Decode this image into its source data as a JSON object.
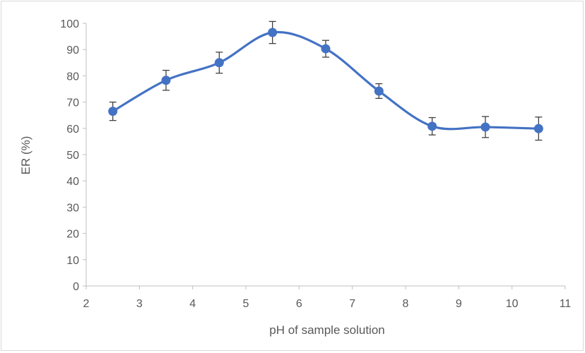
{
  "chart_data": {
    "type": "line",
    "title": "",
    "xlabel": "pH of sample solution",
    "ylabel": "ER (%)",
    "xlim": [
      2,
      11
    ],
    "ylim": [
      0,
      100
    ],
    "x_ticks": [
      2,
      3,
      4,
      5,
      6,
      7,
      8,
      9,
      10,
      11
    ],
    "y_ticks": [
      0,
      10,
      20,
      30,
      40,
      50,
      60,
      70,
      80,
      90,
      100
    ],
    "grid": false,
    "smooth": true,
    "marker": "circle",
    "series": [
      {
        "color": "#4472c4",
        "x": [
          2.5,
          3.5,
          4.5,
          5.5,
          6.5,
          7.5,
          8.5,
          9.5,
          10.5
        ],
        "y": [
          66.5,
          78.3,
          85.0,
          96.5,
          90.3,
          74.2,
          60.8,
          60.5,
          59.9
        ],
        "error": [
          3.5,
          3.8,
          4.0,
          4.2,
          3.2,
          2.8,
          3.3,
          4.0,
          4.4
        ]
      }
    ],
    "error_bar_color": "#404040",
    "axis_color": "#bfbfbf"
  }
}
